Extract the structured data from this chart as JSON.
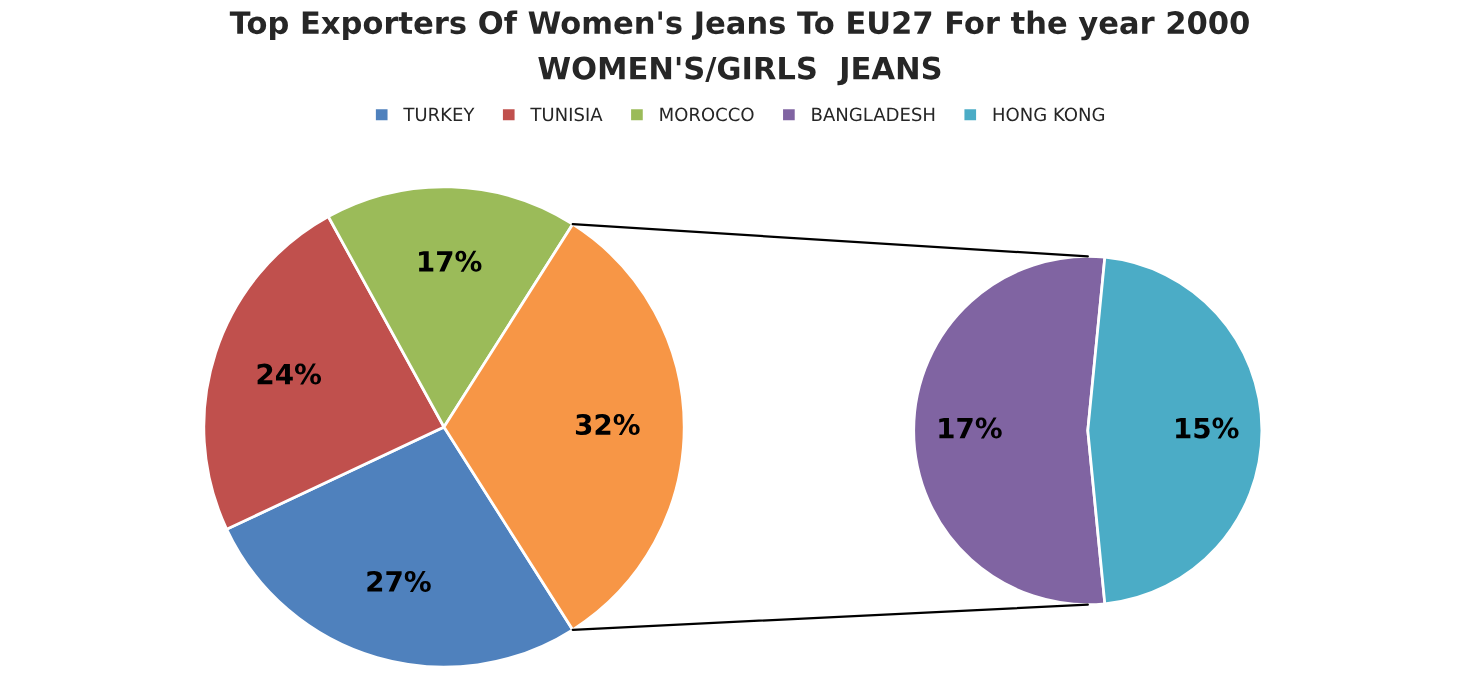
{
  "chart_data": [
    {
      "type": "pie",
      "title": "Top Exporters Of Women's Jeans To EU27 For the year 2000",
      "subtitle": "WOMEN'S/GIRLS  JEANS",
      "legend": "top",
      "categories": [
        "TURKEY",
        "TUNISIA",
        "MOROCCO",
        null
      ],
      "values": [
        27,
        24,
        17,
        32
      ],
      "colors": [
        "#4f81bd",
        "#c0504d",
        "#9bbb59",
        "#f79646"
      ],
      "value_labels": [
        "27%",
        "24%",
        "17%",
        "32%"
      ]
    },
    {
      "type": "pie",
      "legend": "top",
      "categories": [
        "BANGLADESH",
        "HONG KONG"
      ],
      "values": [
        17,
        15
      ],
      "colors": [
        "#8064a2",
        "#4bacc6"
      ],
      "value_labels": [
        "17%",
        "15%"
      ]
    }
  ]
}
